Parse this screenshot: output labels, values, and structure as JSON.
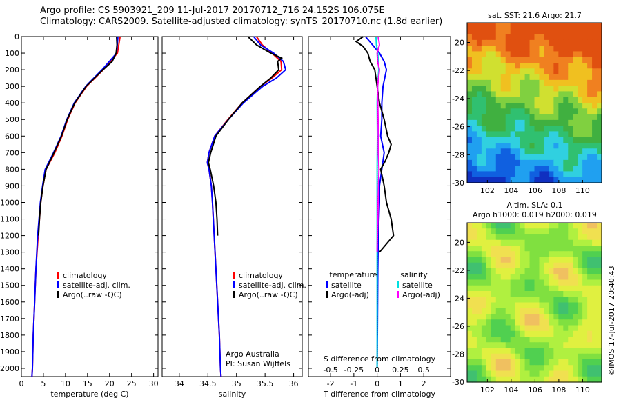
{
  "header": {
    "line1": "Argo profile: CS 5903921_209 11-Jul-2017 20170712_716 24.152S 106.075E",
    "line2": "Climatology: CARS2009. Satellite-adjusted climatology: synTS_20170710.nc (1.8d earlier)"
  },
  "stamp": "©IMOS 17-Jul-2017 20:40:43",
  "colors": {
    "climatology": "#ff0000",
    "satellite": "#0000ff",
    "argo": "#000000",
    "argo_sal": "#ff00ff",
    "sat_sal": "#00e0e0"
  },
  "chart_data": [
    {
      "type": "line",
      "id": "temperature",
      "xlabel": "temperature (deg C)",
      "xlim": [
        0,
        31
      ],
      "ylim": [
        2050,
        0
      ],
      "xticks": [
        0,
        5,
        10,
        15,
        20,
        25,
        30
      ],
      "yticks": [
        0,
        100,
        200,
        300,
        400,
        500,
        600,
        700,
        800,
        900,
        1000,
        1100,
        1200,
        1300,
        1400,
        1500,
        1600,
        1700,
        1800,
        1900,
        2000
      ],
      "legend": [
        "climatology",
        "satellite-adj. clim.",
        "Argo(..raw -QC)"
      ],
      "series": [
        {
          "name": "climatology",
          "color": "#ff0000",
          "depth": [
            0,
            100,
            200,
            300,
            400,
            500,
            600,
            700,
            800,
            900,
            1000,
            1200,
            1400,
            1600,
            1800,
            2000,
            2050
          ],
          "values": [
            22.4,
            21.8,
            18.6,
            14.8,
            12.2,
            10.5,
            9.2,
            7.6,
            5.6,
            4.9,
            4.4,
            3.8,
            3.3,
            3.0,
            2.7,
            2.5,
            2.4
          ]
        },
        {
          "name": "satellite-adj. clim.",
          "color": "#0000ff",
          "depth": [
            0,
            100,
            200,
            300,
            400,
            500,
            600,
            700,
            800,
            900,
            1000,
            1200,
            1400,
            1600,
            1800,
            2000,
            2050
          ],
          "values": [
            21.9,
            21.6,
            18.3,
            14.6,
            12.0,
            10.3,
            9.0,
            7.3,
            5.4,
            4.8,
            4.3,
            3.7,
            3.3,
            3.0,
            2.7,
            2.5,
            2.4
          ]
        },
        {
          "name": "Argo(..raw -QC)",
          "color": "#000000",
          "depth": [
            0,
            50,
            100,
            150,
            200,
            300,
            400,
            500,
            600,
            700,
            800,
            900,
            1000,
            1100,
            1200
          ],
          "values": [
            21.6,
            21.7,
            21.5,
            20.6,
            18.5,
            14.7,
            12.1,
            10.4,
            9.1,
            7.4,
            5.6,
            4.9,
            4.4,
            4.1,
            3.9
          ]
        }
      ]
    },
    {
      "type": "line",
      "id": "salinity",
      "xlabel": "salinity",
      "xlim": [
        33.7,
        36.15
      ],
      "ylim": [
        2050,
        0
      ],
      "xticks": [
        34,
        34.5,
        35,
        35.5,
        36
      ],
      "legend": [
        "climatology",
        "satellite-adj. clim.",
        "Argo(..raw -QC)"
      ],
      "annotations": [
        "Argo Australia",
        "PI: Susan Wijffels"
      ],
      "series": [
        {
          "name": "climatology",
          "color": "#ff0000",
          "depth": [
            0,
            50,
            100,
            150,
            200,
            250,
            300,
            400,
            500,
            600,
            700,
            760,
            800,
            900,
            1000,
            1200,
            1400,
            1600,
            1800,
            2000,
            2050
          ],
          "values": [
            35.35,
            35.45,
            35.62,
            35.78,
            35.79,
            35.62,
            35.42,
            35.1,
            34.85,
            34.62,
            34.52,
            34.49,
            34.52,
            34.56,
            34.58,
            34.61,
            34.64,
            34.67,
            34.7,
            34.72,
            34.73
          ]
        },
        {
          "name": "satellite-adj. clim.",
          "color": "#0000ff",
          "depth": [
            0,
            50,
            100,
            150,
            200,
            250,
            300,
            400,
            500,
            600,
            700,
            760,
            800,
            900,
            1000,
            1200,
            1400,
            1600,
            1800,
            2000,
            2050
          ],
          "values": [
            35.3,
            35.42,
            35.65,
            35.82,
            35.86,
            35.7,
            35.46,
            35.12,
            34.86,
            34.62,
            34.52,
            34.49,
            34.52,
            34.56,
            34.58,
            34.61,
            34.64,
            34.67,
            34.7,
            34.72,
            34.73
          ]
        },
        {
          "name": "Argo(..raw -QC)",
          "color": "#000000",
          "depth": [
            0,
            50,
            100,
            130,
            150,
            200,
            250,
            300,
            400,
            500,
            600,
            700,
            760,
            800,
            900,
            1000,
            1100,
            1200
          ],
          "values": [
            35.2,
            35.35,
            35.6,
            35.79,
            35.72,
            35.74,
            35.6,
            35.42,
            35.1,
            34.86,
            34.64,
            34.55,
            34.51,
            34.54,
            34.6,
            34.64,
            34.66,
            34.67
          ]
        }
      ]
    },
    {
      "type": "line",
      "id": "difference",
      "xlabel": "T difference from climatology",
      "xlabel_top": "S difference from climatology",
      "xlim": [
        -2.95,
        3.15
      ],
      "ylim": [
        2050,
        0
      ],
      "xticks": [
        -2,
        -1,
        0,
        1,
        2
      ],
      "sticks": [
        -0.5,
        -0.25,
        0,
        0.25,
        0.5
      ],
      "legend_headers": [
        "temperature",
        "salinity"
      ],
      "legend_t": [
        "satellite",
        "Argo(-adj)"
      ],
      "legend_s": [
        "satellite",
        "Argo(-adj)"
      ],
      "series": [
        {
          "name": "T satellite",
          "color": "#0000ff",
          "depth": [
            0,
            50,
            100,
            150,
            200,
            300,
            400,
            500,
            600,
            700,
            800,
            900,
            1000,
            1200,
            1400,
            1600,
            1800,
            2000
          ],
          "values": [
            -0.5,
            -0.2,
            0.1,
            0.3,
            0.4,
            0.25,
            0.2,
            0.2,
            0.15,
            0.3,
            0.2,
            0.1,
            0.1,
            0.05,
            0.03,
            0.02,
            0.01,
            0.0
          ]
        },
        {
          "name": "T Argo(-adj)",
          "color": "#000000",
          "depth": [
            0,
            30,
            60,
            100,
            150,
            200,
            300,
            400,
            500,
            600,
            650,
            700,
            750,
            800,
            900,
            1000,
            1100,
            1200,
            1300
          ],
          "values": [
            -0.6,
            -0.9,
            -0.6,
            -0.4,
            -0.3,
            -0.1,
            0.0,
            0.1,
            0.3,
            0.45,
            0.6,
            0.5,
            0.35,
            0.15,
            0.3,
            0.4,
            0.6,
            0.7,
            0.1
          ]
        },
        {
          "name": "S satellite",
          "color": "#00e0e0",
          "depth": [
            0,
            50,
            100,
            150,
            200,
            300,
            400,
            600,
            800,
            1000,
            1200,
            1400,
            1600,
            1800,
            2000
          ],
          "values": [
            -0.05,
            -0.03,
            0.03,
            0.05,
            0.07,
            0.02,
            0.0,
            0.01,
            0.0,
            0.0,
            0.0,
            0.0,
            0.0,
            0.0,
            0.0
          ]
        },
        {
          "name": "S Argo(-adj)",
          "color": "#ff00ff",
          "depth": [
            0,
            50,
            100,
            150,
            200,
            300,
            400,
            500,
            600,
            700,
            800,
            900,
            1000,
            1100,
            1200,
            1300
          ],
          "values": [
            0.05,
            0.1,
            0.0,
            0.02,
            0.1,
            0.02,
            0.03,
            0.04,
            0.05,
            0.05,
            0.08,
            0.06,
            0.04,
            0.03,
            0.01,
            0.0
          ]
        }
      ]
    },
    {
      "type": "heatmap",
      "id": "sst_map",
      "title": "sat. SST: 21.6 Argo: 21.7",
      "xticks": [
        102,
        104,
        106,
        108,
        110
      ],
      "yticks": [
        -20,
        -22,
        -24,
        -26,
        -28,
        -30
      ],
      "xlim": [
        100.3,
        111.6
      ],
      "ylim": [
        -30,
        -18.6
      ]
    },
    {
      "type": "heatmap",
      "id": "sla_map",
      "title": "Altim. SLA: 0.1",
      "subtitle": "Argo h1000: 0.019 h2000: 0.019",
      "xticks": [
        102,
        104,
        106,
        108,
        110
      ],
      "yticks": [
        -20,
        -22,
        -24,
        -26,
        -28,
        -30
      ],
      "xlim": [
        100.3,
        111.6
      ],
      "ylim": [
        -30,
        -18.6
      ]
    }
  ]
}
